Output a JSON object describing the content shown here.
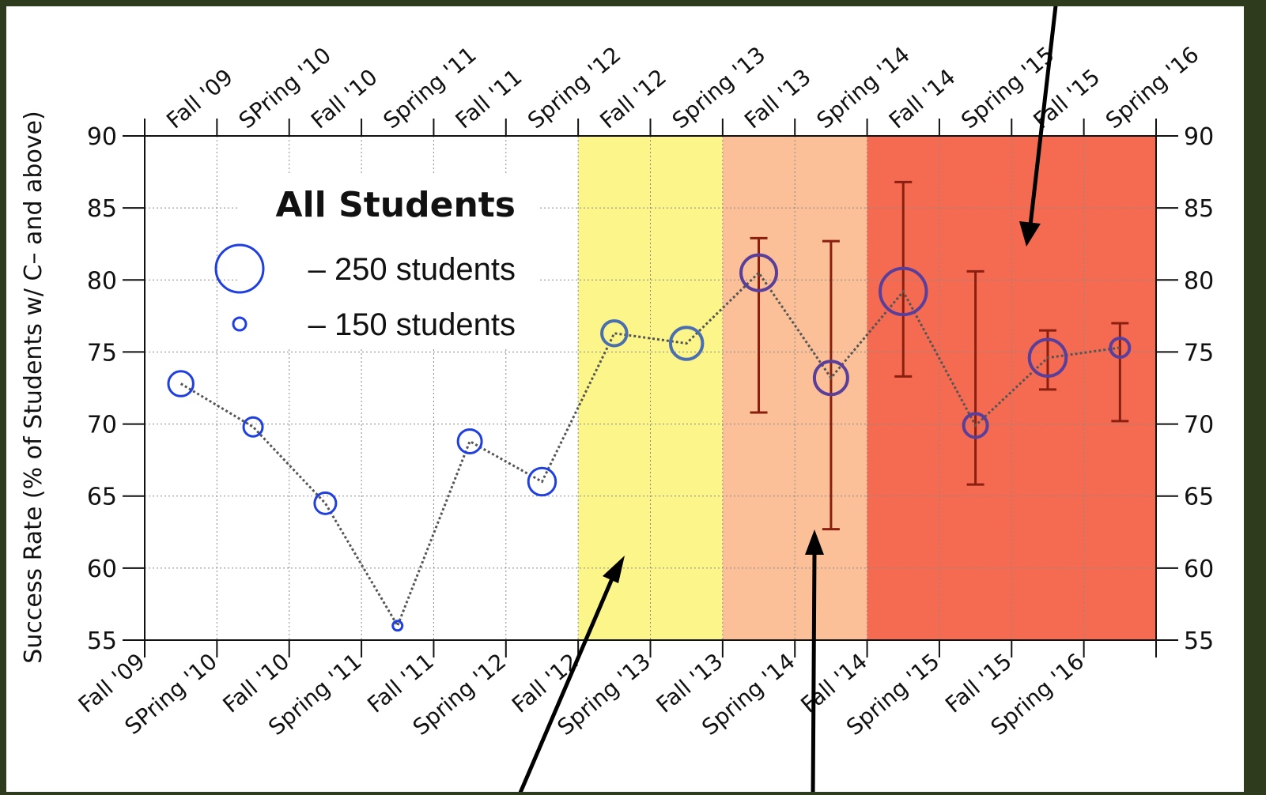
{
  "chart_data": {
    "type": "scatter",
    "title": "",
    "legend_title": "All Students",
    "ylabel": "Success Rate (% of Students w/ C– and above)",
    "xlabel": "",
    "categories": [
      "Fall '09",
      "SPring '10",
      "Fall '10",
      "Spring '11",
      "Fall '11",
      "Spring '12",
      "Fall '12",
      "Spring '13",
      "Fall '13",
      "Spring '14",
      "Fall '14",
      "Spring '15",
      "Fall '15",
      "Spring '16"
    ],
    "ylim": [
      55,
      90
    ],
    "yticks": [
      55,
      60,
      65,
      70,
      75,
      80,
      85,
      90
    ],
    "grid": true,
    "legend_position": "upper-left",
    "size_legend": [
      {
        "label": "– 250 students",
        "students": 250
      },
      {
        "label": "– 150 students",
        "students": 150
      }
    ],
    "series": [
      {
        "values": [
          72.8,
          69.8,
          64.5,
          56.0,
          68.8,
          66.0,
          76.3,
          75.6,
          80.5,
          73.2,
          79.2,
          69.9,
          74.6,
          75.3
        ],
        "students": [
          205,
          180,
          190,
          140,
          200,
          215,
          205,
          235,
          250,
          240,
          295,
          200,
          255,
          180
        ],
        "error_low": [
          null,
          null,
          null,
          null,
          null,
          null,
          null,
          null,
          70.8,
          62.7,
          73.3,
          65.8,
          72.4,
          70.2
        ],
        "error_high": [
          null,
          null,
          null,
          null,
          null,
          null,
          null,
          null,
          82.9,
          82.7,
          86.8,
          80.6,
          76.5,
          77.0
        ]
      }
    ],
    "shaded_regions": [
      {
        "from": "Fall '12",
        "to": "Spring '13",
        "color": "#fbf58a"
      },
      {
        "from": "Fall '13",
        "to": "Spring '14",
        "color": "#fbc097"
      },
      {
        "from": "Fall '14",
        "to": "Spring '16",
        "color": "#f56b52"
      }
    ],
    "colors": {
      "marker_early": "#1f3fe0",
      "marker_late": "#5a3f9a",
      "error_bar": "#8a1f10",
      "connector": "#555555",
      "arrow": "#000000"
    }
  }
}
